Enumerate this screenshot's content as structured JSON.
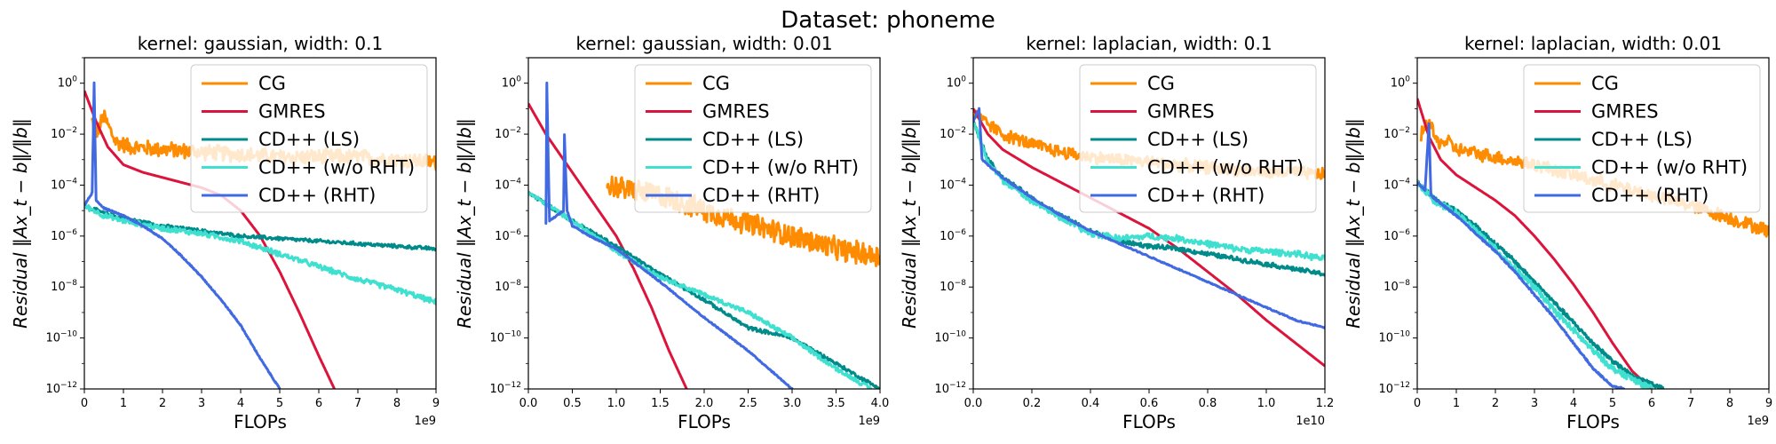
{
  "figure": {
    "suptitle": "Dataset: phoneme"
  },
  "colors": {
    "CG": "#FF8C00",
    "GMRES": "#DC143C",
    "CD++ (LS)": "#008B8B",
    "CD++ (w/o RHT)": "#40E0D0",
    "CD++ (RHT)": "#4169E1"
  },
  "legend_labels": [
    "CG",
    "GMRES",
    "CD++ (LS)",
    "CD++ (w/o RHT)",
    "CD++ (RHT)"
  ],
  "chart_data": [
    {
      "type": "line",
      "title": "kernel: gaussian, width: 0.1",
      "xlabel": "FLOPs",
      "ylabel": "Residual ‖Ax_t − b‖/‖b‖",
      "x_scale_label": "1e9",
      "xlim": [
        0,
        9
      ],
      "xticks": [
        "0",
        "1",
        "2",
        "3",
        "4",
        "5",
        "6",
        "7",
        "8",
        "9"
      ],
      "yscale": "log",
      "ylim_exp": [
        -12,
        1
      ],
      "yticks_exp": [
        0,
        -2,
        -4,
        -6,
        -8,
        -10,
        -12
      ],
      "legend": "upper-right",
      "series": [
        {
          "name": "CG",
          "x": [
            0.2,
            0.3,
            0.5,
            0.8,
            1.2,
            2,
            3,
            4,
            5,
            6,
            7,
            8,
            9
          ],
          "log10_y": [
            -1.5,
            -2.0,
            -1.3,
            -2.3,
            -2.5,
            -2.6,
            -2.7,
            -2.8,
            -2.9,
            -2.9,
            -2.9,
            -3.0,
            -3.1
          ],
          "noise": 0.35
        },
        {
          "name": "GMRES",
          "x": [
            0,
            0.3,
            0.6,
            1.0,
            1.5,
            2.0,
            2.5,
            3.0,
            3.5,
            4.0,
            4.5,
            5.0,
            5.5,
            6.0,
            6.4
          ],
          "log10_y": [
            -0.3,
            -1.5,
            -2.5,
            -3.2,
            -3.5,
            -3.7,
            -3.9,
            -4.1,
            -4.4,
            -5.0,
            -6.0,
            -7.4,
            -9.0,
            -10.7,
            -12.0
          ],
          "noise": 0
        },
        {
          "name": "CD++ (LS)",
          "x": [
            0,
            0.5,
            1,
            2,
            3,
            4,
            5,
            6,
            7,
            8,
            9
          ],
          "log10_y": [
            -4.8,
            -5.1,
            -5.3,
            -5.6,
            -5.8,
            -6.0,
            -6.1,
            -6.2,
            -6.3,
            -6.4,
            -6.5
          ],
          "noise": 0.08
        },
        {
          "name": "CD++ (w/o RHT)",
          "x": [
            0,
            0.5,
            1,
            2,
            3,
            4,
            5,
            6,
            7,
            8,
            9
          ],
          "log10_y": [
            -4.8,
            -5.2,
            -5.4,
            -5.7,
            -5.9,
            -6.2,
            -6.7,
            -7.2,
            -7.7,
            -8.1,
            -8.6
          ],
          "noise": 0.12
        },
        {
          "name": "CD++ (RHT)",
          "x": [
            0,
            0.2,
            0.25,
            0.3,
            0.5,
            1.0,
            1.5,
            2.0,
            2.5,
            3.0,
            3.5,
            4.0,
            4.5,
            5.0
          ],
          "log10_y": [
            -4.8,
            -4.3,
            0.0,
            -4.6,
            -4.9,
            -5.2,
            -5.6,
            -6.1,
            -6.8,
            -7.6,
            -8.5,
            -9.5,
            -10.8,
            -12.0
          ],
          "noise": 0.03
        }
      ]
    },
    {
      "type": "line",
      "title": "kernel: gaussian, width: 0.01",
      "xlabel": "FLOPs",
      "ylabel": "Residual ‖Ax_t − b‖/‖b‖",
      "x_scale_label": "1e9",
      "xlim": [
        0,
        4
      ],
      "xticks": [
        "0.0",
        "0.5",
        "1.0",
        "1.5",
        "2.0",
        "2.5",
        "3.0",
        "3.5",
        "4.0"
      ],
      "yscale": "log",
      "ylim_exp": [
        -12,
        1
      ],
      "yticks_exp": [
        0,
        -2,
        -4,
        -6,
        -8,
        -10,
        -12
      ],
      "legend": "upper-right",
      "series": [
        {
          "name": "CG",
          "x": [
            0.9,
            1.2,
            1.6,
            2.0,
            2.5,
            3.0,
            3.5,
            4.0
          ],
          "log10_y": [
            -4.0,
            -4.2,
            -4.5,
            -5.0,
            -5.5,
            -6.0,
            -6.5,
            -6.8
          ],
          "noise": 0.5
        },
        {
          "name": "GMRES",
          "x": [
            0.0,
            0.2,
            0.4,
            0.6,
            0.8,
            1.0,
            1.2,
            1.4,
            1.6,
            1.8
          ],
          "log10_y": [
            -0.8,
            -2.0,
            -3.0,
            -4.0,
            -5.0,
            -6.0,
            -7.3,
            -8.8,
            -10.5,
            -12.0
          ],
          "noise": 0
        },
        {
          "name": "CD++ (LS)",
          "x": [
            0.0,
            0.5,
            1.0,
            1.5,
            2.0,
            2.5,
            3.0,
            3.5,
            4.0
          ],
          "log10_y": [
            -4.3,
            -5.4,
            -6.4,
            -7.5,
            -8.5,
            -9.6,
            -10.0,
            -11.0,
            -12.0
          ],
          "noise": 0.08
        },
        {
          "name": "CD++ (w/o RHT)",
          "x": [
            0.0,
            0.5,
            1.0,
            1.5,
            2.0,
            2.5,
            3.0,
            3.5,
            3.9
          ],
          "log10_y": [
            -4.3,
            -5.4,
            -6.6,
            -7.6,
            -8.3,
            -9.0,
            -10.0,
            -11.2,
            -12.0
          ],
          "noise": 0.1
        },
        {
          "name": "CD++ (RHT)",
          "x": [
            0.2,
            0.21,
            0.24,
            0.4,
            0.41,
            0.44,
            0.5,
            0.7,
            1.0,
            1.5,
            2.0,
            2.5,
            3.0
          ],
          "log10_y": [
            -5.5,
            0.0,
            -5.4,
            -5.0,
            -2.0,
            -5.0,
            -5.6,
            -6.0,
            -6.5,
            -7.8,
            -9.2,
            -10.5,
            -12.0
          ],
          "noise": 0.03
        }
      ]
    },
    {
      "type": "line",
      "title": "kernel: laplacian, width: 0.1",
      "xlabel": "FLOPs",
      "ylabel": "Residual ‖Ax_t − b‖/‖b‖",
      "x_scale_label": "1e10",
      "xlim": [
        0,
        1.2
      ],
      "xticks": [
        "0.0",
        "0.2",
        "0.4",
        "0.6",
        "0.8",
        "1.0",
        "1.2"
      ],
      "yscale": "log",
      "ylim_exp": [
        -12,
        1
      ],
      "yticks_exp": [
        0,
        -2,
        -4,
        -6,
        -8,
        -10,
        -12
      ],
      "legend": "upper-right",
      "series": [
        {
          "name": "CG",
          "x": [
            0.0,
            0.1,
            0.2,
            0.3,
            0.4,
            0.5,
            0.6,
            0.7,
            0.8,
            0.9,
            1.0,
            1.1,
            1.2
          ],
          "log10_y": [
            -1.2,
            -2.0,
            -2.4,
            -2.7,
            -2.9,
            -3.0,
            -3.1,
            -3.2,
            -3.3,
            -3.4,
            -3.5,
            -3.5,
            -3.6
          ],
          "noise": 0.28
        },
        {
          "name": "GMRES",
          "x": [
            0.0,
            0.05,
            0.1,
            0.2,
            0.3,
            0.4,
            0.5,
            0.6,
            0.7,
            0.8,
            0.9,
            1.0,
            1.1,
            1.2
          ],
          "log10_y": [
            -1.0,
            -2.0,
            -2.6,
            -3.3,
            -3.9,
            -4.5,
            -5.1,
            -5.7,
            -6.5,
            -7.4,
            -8.3,
            -9.3,
            -10.2,
            -11.1
          ],
          "noise": 0
        },
        {
          "name": "CD++ (LS)",
          "x": [
            0.0,
            0.05,
            0.1,
            0.2,
            0.3,
            0.4,
            0.5,
            0.6,
            0.7,
            0.8,
            0.9,
            1.0,
            1.1,
            1.2
          ],
          "log10_y": [
            -1.5,
            -3.0,
            -3.7,
            -4.5,
            -5.2,
            -5.8,
            -6.2,
            -6.4,
            -6.5,
            -6.7,
            -6.9,
            -7.1,
            -7.3,
            -7.5
          ],
          "noise": 0.1
        },
        {
          "name": "CD++ (w/o RHT)",
          "x": [
            0.0,
            0.05,
            0.1,
            0.2,
            0.3,
            0.4,
            0.5,
            0.6,
            0.7,
            0.8,
            0.9,
            1.0,
            1.1,
            1.2
          ],
          "log10_y": [
            -1.5,
            -3.1,
            -3.8,
            -4.6,
            -5.3,
            -5.9,
            -6.1,
            -6.0,
            -6.1,
            -6.3,
            -6.5,
            -6.6,
            -6.7,
            -6.9
          ],
          "noise": 0.14
        },
        {
          "name": "CD++ (RHT)",
          "x": [
            0.0,
            0.02,
            0.03,
            0.05,
            0.1,
            0.2,
            0.3,
            0.4,
            0.5,
            0.6,
            0.7,
            0.8,
            0.9,
            1.0,
            1.1,
            1.2
          ],
          "log10_y": [
            -1.5,
            -1.0,
            -3.0,
            -3.2,
            -3.7,
            -4.5,
            -5.2,
            -5.8,
            -6.3,
            -6.8,
            -7.3,
            -7.8,
            -8.3,
            -8.8,
            -9.3,
            -9.6
          ],
          "noise": 0.03
        }
      ]
    },
    {
      "type": "line",
      "title": "kernel: laplacian, width: 0.01",
      "xlabel": "FLOPs",
      "ylabel": "Residual ‖Ax_t − b‖/‖b‖",
      "x_scale_label": "1e9",
      "xlim": [
        0,
        9
      ],
      "xticks": [
        "0",
        "1",
        "2",
        "3",
        "4",
        "5",
        "6",
        "7",
        "8",
        "9"
      ],
      "yscale": "log",
      "ylim_exp": [
        -12,
        1
      ],
      "yticks_exp": [
        0,
        -2,
        -4,
        -6,
        -8,
        -10,
        -12
      ],
      "legend": "upper-right",
      "series": [
        {
          "name": "CG",
          "x": [
            0.1,
            0.3,
            0.5,
            0.8,
            1.0,
            2,
            3,
            4,
            5,
            6,
            7,
            8,
            9
          ],
          "log10_y": [
            -2.0,
            -1.5,
            -2.3,
            -2.3,
            -2.6,
            -2.9,
            -3.2,
            -3.6,
            -4.0,
            -4.4,
            -4.8,
            -5.3,
            -5.8
          ],
          "noise": 0.3
        },
        {
          "name": "GMRES",
          "x": [
            0.0,
            0.3,
            0.6,
            1.0,
            1.5,
            2.0,
            2.5,
            3.0,
            3.5,
            4.0,
            4.5,
            5.0,
            5.5,
            6.0
          ],
          "log10_y": [
            -0.6,
            -2.1,
            -3.0,
            -3.6,
            -4.1,
            -4.6,
            -5.2,
            -6.0,
            -6.9,
            -7.9,
            -9.0,
            -10.2,
            -11.3,
            -12.0
          ],
          "noise": 0
        },
        {
          "name": "CD++ (LS)",
          "x": [
            0.0,
            0.5,
            1.0,
            1.5,
            2.0,
            2.5,
            3.0,
            3.5,
            4.0,
            4.5,
            5.0,
            5.5,
            6.0,
            6.3
          ],
          "log10_y": [
            -3.9,
            -4.6,
            -5.0,
            -5.6,
            -6.3,
            -7.0,
            -7.8,
            -8.6,
            -9.4,
            -10.2,
            -10.9,
            -11.5,
            -11.8,
            -12.0
          ],
          "noise": 0.1
        },
        {
          "name": "CD++ (w/o RHT)",
          "x": [
            0.0,
            0.5,
            1.0,
            1.5,
            2.0,
            2.5,
            3.0,
            3.5,
            4.0,
            4.5,
            5.0,
            5.5,
            6.0
          ],
          "log10_y": [
            -3.9,
            -4.7,
            -5.1,
            -5.8,
            -6.5,
            -7.3,
            -8.0,
            -8.9,
            -9.7,
            -10.5,
            -11.2,
            -11.6,
            -12.0
          ],
          "noise": 0.14
        },
        {
          "name": "CD++ (RHT)",
          "x": [
            0.0,
            0.2,
            0.3,
            0.35,
            0.5,
            1.0,
            1.5,
            2.0,
            2.5,
            3.0,
            3.5,
            4.0,
            4.5,
            5.0,
            5.3
          ],
          "log10_y": [
            -3.9,
            -4.2,
            -1.6,
            -4.4,
            -4.6,
            -5.2,
            -5.9,
            -6.6,
            -7.4,
            -8.3,
            -9.2,
            -10.2,
            -11.2,
            -11.9,
            -12.0
          ],
          "noise": 0.04
        }
      ]
    }
  ]
}
